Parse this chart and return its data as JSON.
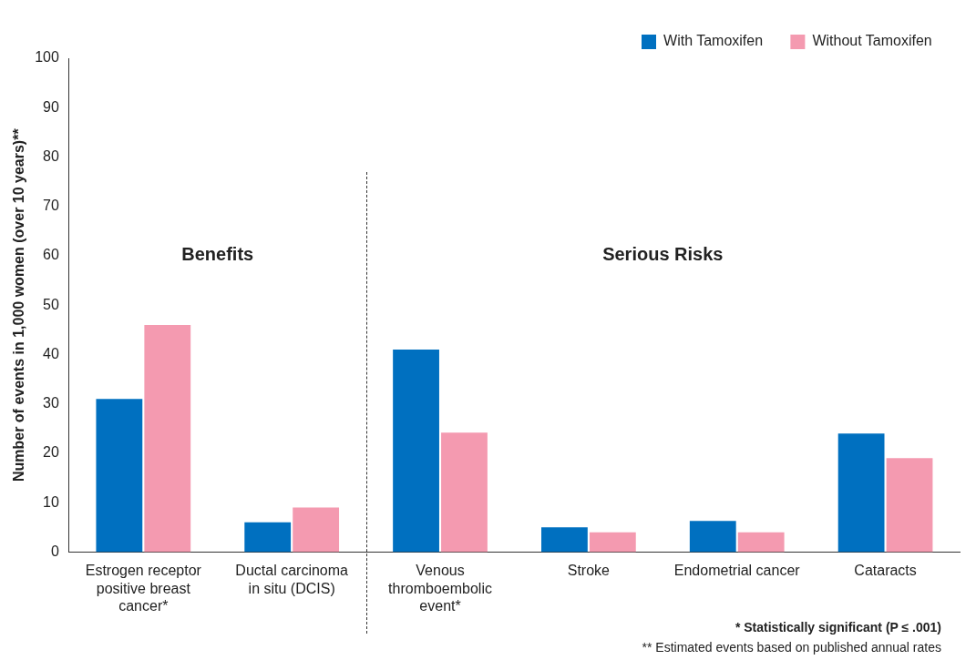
{
  "chart_data": {
    "type": "bar",
    "ylabel": "Number of events in 1,000 women (over 10 years)**",
    "categories": [
      "Estrogen receptor positive breast cancer*",
      "Ductal carcinoma in situ (DCIS)",
      "Venous thromboembolic event*",
      "Stroke",
      "Endometrial cancer",
      "Cataracts"
    ],
    "series": [
      {
        "name": "With Tamoxifen",
        "color": "#0070c0",
        "values": [
          31,
          6,
          41,
          5,
          6.3,
          24
        ]
      },
      {
        "name": "Without Tamoxifen",
        "color": "#f49ab0",
        "values": [
          46,
          9,
          24.2,
          4,
          4,
          19
        ]
      }
    ],
    "ylim": [
      0,
      100
    ],
    "yticks": [
      0,
      10,
      20,
      30,
      40,
      50,
      60,
      70,
      80,
      90,
      100
    ],
    "grid": false,
    "legend": "top right",
    "annotations": [
      "Benefits",
      "Serious Risks",
      "* Statistically significant (P ≤ .001)",
      "** Estimated events based on published annual rates"
    ]
  }
}
